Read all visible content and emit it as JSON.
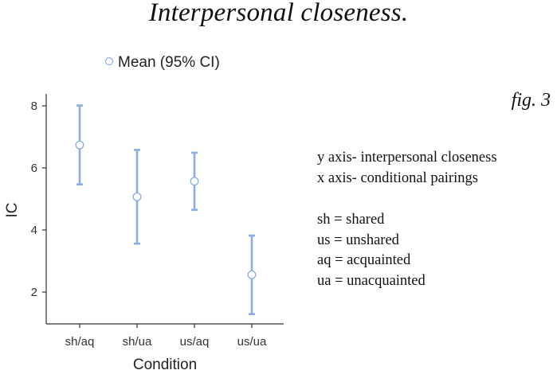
{
  "title": "Interpersonal closeness.",
  "fig_label": "fig. 3",
  "notes": {
    "axes": [
      "y axis- interpersonal closeness",
      "x axis- conditional pairings"
    ],
    "abbreviations": [
      "sh = shared",
      "us = unshared",
      "aq = acquainted",
      "ua = unacquainted"
    ]
  },
  "colors": {
    "series": "#8aaee6",
    "axis": "#333333"
  },
  "chart_data": {
    "type": "scatter",
    "xlabel": "Condition",
    "ylabel": "IC",
    "ylim": [
      1,
      8.3
    ],
    "yticks": [
      2,
      4,
      6,
      8
    ],
    "categories": [
      "sh/aq",
      "sh/ua",
      "us/aq",
      "us/ua"
    ],
    "series": [
      {
        "name": "Mean (95% CI)",
        "values": [
          6.74,
          5.07,
          5.57,
          2.56
        ],
        "ci_low": [
          5.47,
          3.56,
          4.65,
          1.29
        ],
        "ci_high": [
          8.01,
          6.58,
          6.49,
          3.82
        ]
      }
    ],
    "legend": "top",
    "grid": false
  }
}
